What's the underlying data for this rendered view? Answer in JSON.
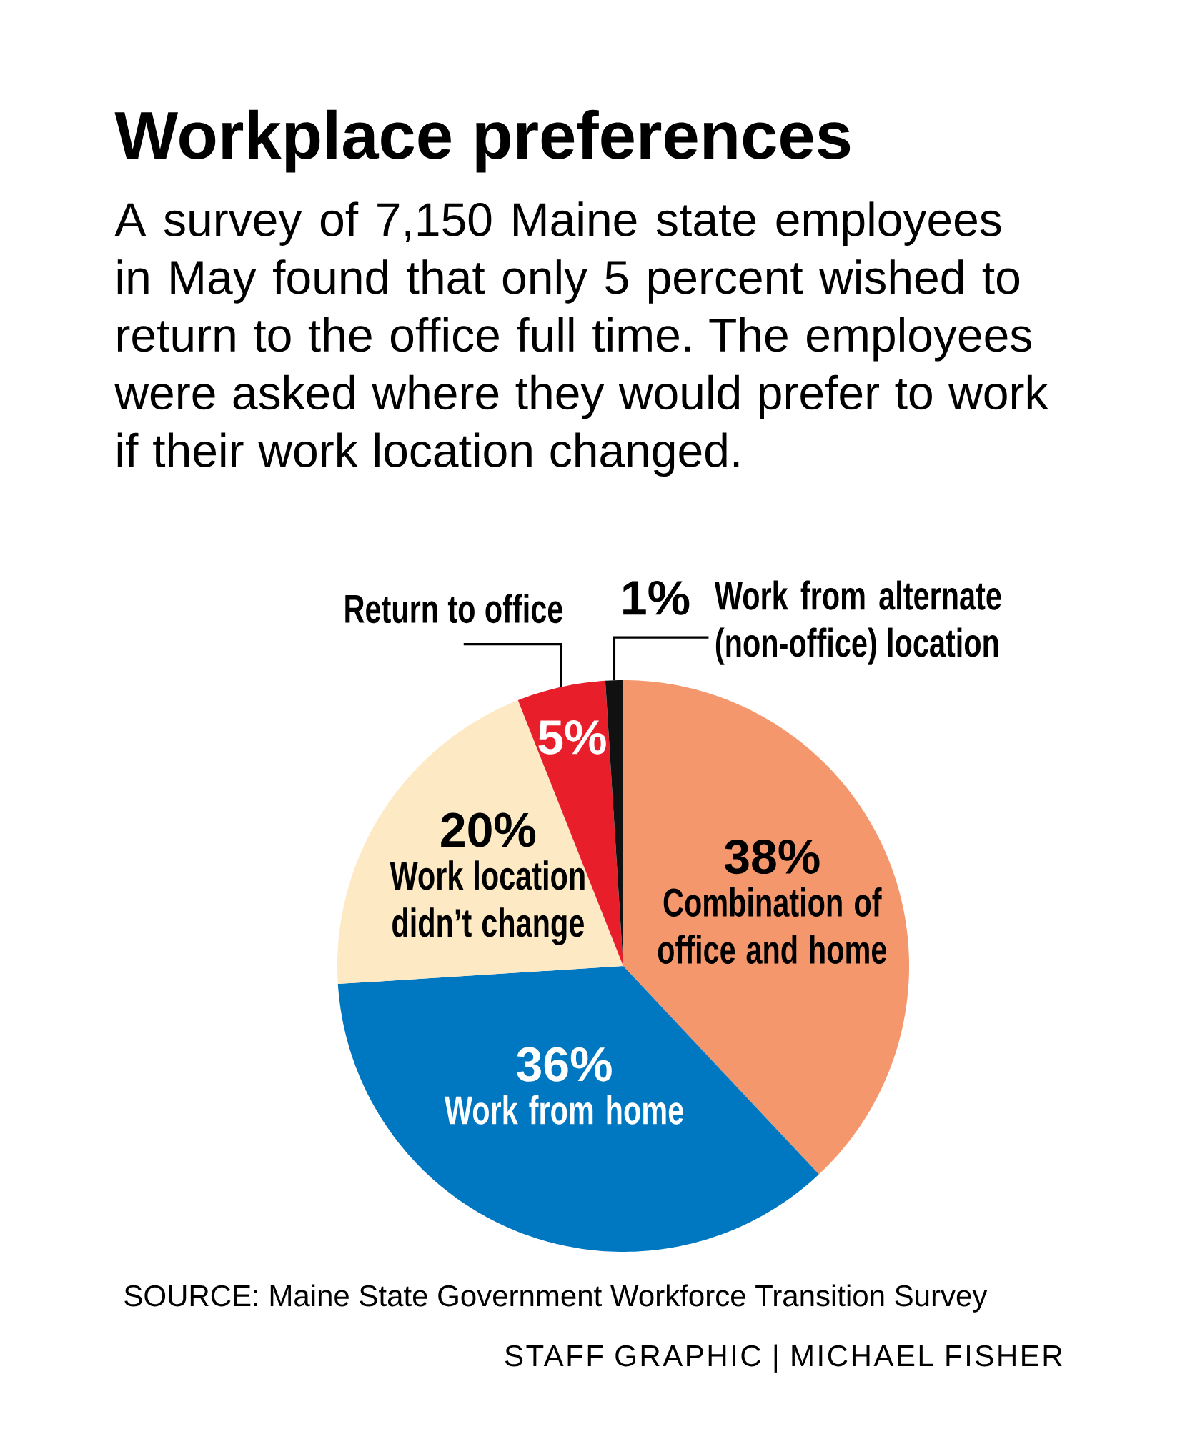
{
  "chart_data": {
    "type": "pie",
    "title": "Workplace preferences",
    "subtitle": "A survey of 7,150 Maine state employees in May found that only 5 percent wished to return to the office full time. The employees were asked where they would prefer to work if their work location changed.",
    "categories": [
      "Combination of office and home",
      "Work from home",
      "Work location didn’t change",
      "Return to office",
      "Work from alternate (non-office) location"
    ],
    "values": [
      38,
      36,
      20,
      5,
      1
    ],
    "colors": [
      "#f4976c",
      "#0077c1",
      "#fde9c3",
      "#e81e2b",
      "#111111"
    ],
    "value_labels": [
      "38%",
      "36%",
      "20%",
      "5%",
      "1%"
    ],
    "annotations": [
      "SOURCE: Maine State Government Workforce Transition Survey",
      "STAFF GRAPHIC | MICHAEL FISHER"
    ]
  }
}
